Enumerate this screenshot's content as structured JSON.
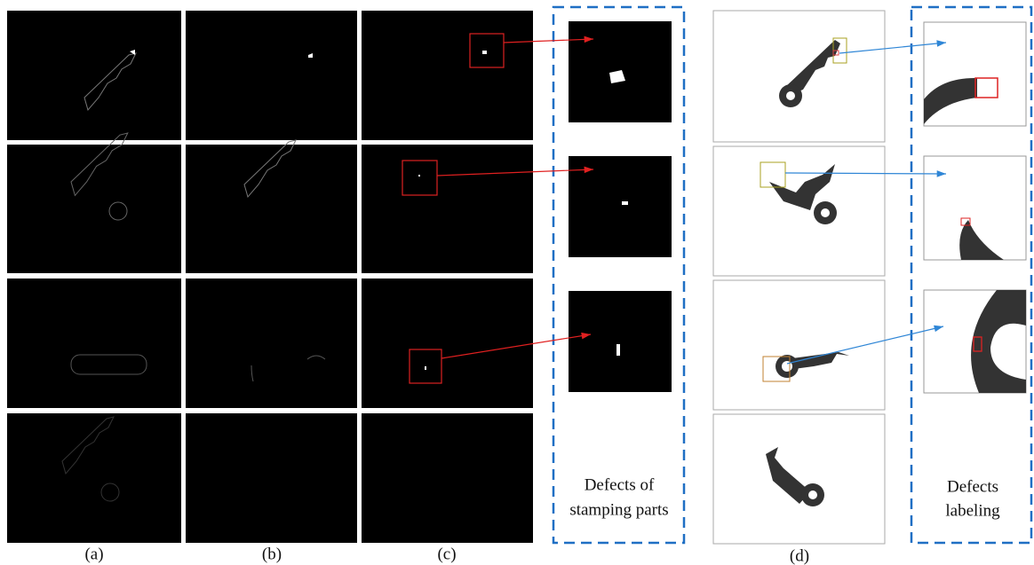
{
  "panel_labels": [
    "(a)",
    "(b)",
    "(c)",
    "(d)"
  ],
  "boxes": [
    {
      "caption": [
        "Defects of",
        "stamping parts"
      ]
    },
    {
      "caption": [
        "Defects",
        "labeling"
      ]
    }
  ]
}
